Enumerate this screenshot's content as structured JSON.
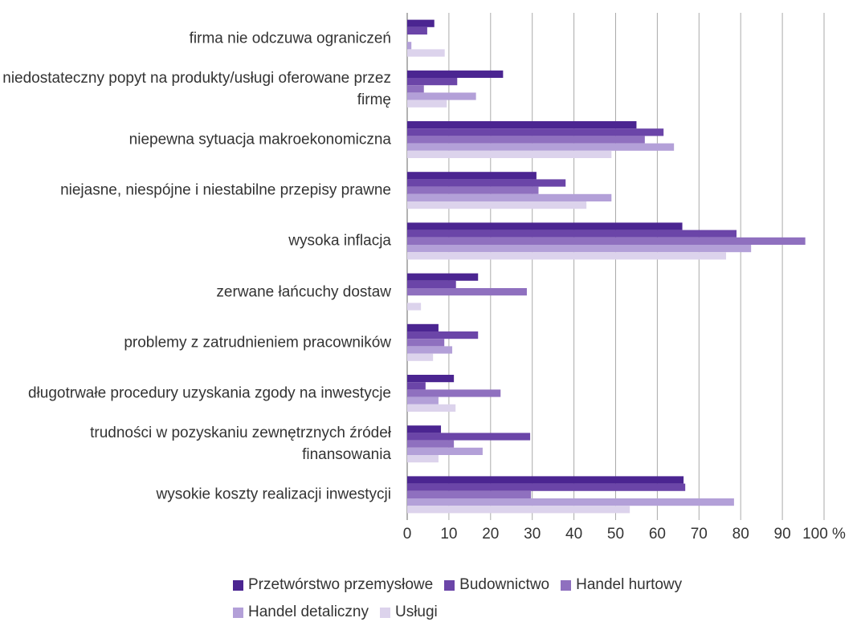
{
  "chart_data": {
    "type": "hbar",
    "categories": [
      "firma nie odczuwa ograniczeń",
      "niedostateczny popyt na produkty/usługi oferowane przez firmę",
      "niepewna sytuacja makroekonomiczna",
      "niejasne, niespójne i niestabilne przepisy prawne",
      "wysoka inflacja",
      "zerwane łańcuchy dostaw",
      "problemy z zatrudnieniem pracowników",
      "długotrwałe procedury uzyskania zgody na inwestycje",
      "trudności w pozyskaniu zewnętrznych źródeł finansowania",
      "wysokie koszty realizacji inwestycji"
    ],
    "series": [
      {
        "name": "Przetwórstwo przemysłowe",
        "color": "#4b2591",
        "values": [
          6.5,
          23,
          55,
          31,
          66,
          17,
          7.5,
          11.2,
          8.1,
          66.3
        ]
      },
      {
        "name": "Budownictwo",
        "color": "#6b45a8",
        "values": [
          4.8,
          12,
          61.5,
          38,
          79,
          11.7,
          17,
          4.4,
          29.5,
          66.7
        ]
      },
      {
        "name": "Handel hurtowy",
        "color": "#8f70bf",
        "values": [
          0,
          4,
          57,
          31.5,
          95.5,
          28.7,
          8.9,
          22.4,
          11.2,
          29.7
        ]
      },
      {
        "name": "Handel detaliczny",
        "color": "#b3a0d8",
        "values": [
          1,
          16.5,
          64,
          49,
          82.5,
          0,
          10.8,
          7.5,
          18.1,
          78.4
        ]
      },
      {
        "name": "Usługi",
        "color": "#dcd3ec",
        "values": [
          9,
          9.5,
          49,
          43,
          76.5,
          3.3,
          6.2,
          11.6,
          7.5,
          53.4
        ]
      }
    ],
    "xlim": [
      0,
      100
    ],
    "xticks": [
      0,
      10,
      20,
      30,
      40,
      50,
      60,
      70,
      80,
      90,
      {
        "value": 100,
        "label": "100 %"
      }
    ],
    "grid": true
  }
}
